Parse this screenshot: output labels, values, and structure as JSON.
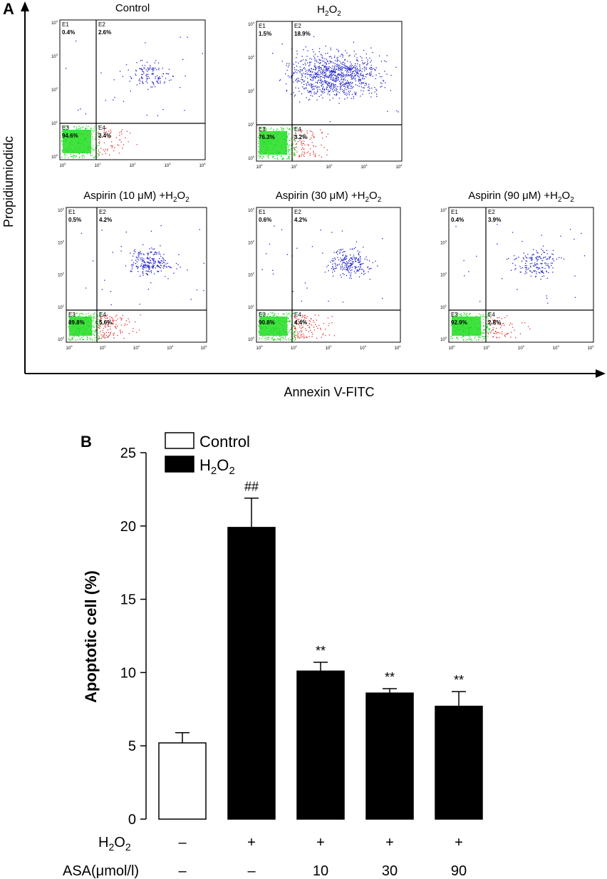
{
  "panel_a": {
    "label": "A",
    "x_axis_label": "Annexin V-FITC",
    "y_axis_label": "Propidiumiodidc",
    "plots": [
      {
        "title": "Control",
        "title_sub": "",
        "q": [
          "E1",
          "E2",
          "E3",
          "E4"
        ],
        "pct": [
          "0.4%",
          "2.6%",
          "94.6%",
          "2.4%"
        ]
      },
      {
        "title": "H",
        "title_sub": "2",
        "title_tail": "O",
        "title_sub2": "2",
        "q": [
          "E1",
          "E2",
          "E3",
          "E4"
        ],
        "pct": [
          "1.5%",
          "18.9%",
          "76.3%",
          "3.2%"
        ]
      },
      {
        "title": "Aspirin (10 μM) +H",
        "title_sub": "2",
        "title_tail": "O",
        "title_sub2": "2",
        "q": [
          "E1",
          "E2",
          "E3",
          "E4"
        ],
        "pct": [
          "0.5%",
          "4.2%",
          "89.8%",
          "5.6%"
        ]
      },
      {
        "title": "Aspirin (30 μM) +H",
        "title_sub": "2",
        "title_tail": "O",
        "title_sub2": "2",
        "q": [
          "E1",
          "E2",
          "E3",
          "E4"
        ],
        "pct": [
          "0.6%",
          "4.2%",
          "90.8%",
          "4.4%"
        ]
      },
      {
        "title": "Aspirin (90 μM) +H",
        "title_sub": "2",
        "title_tail": "O",
        "title_sub2": "2",
        "q": [
          "E1",
          "E2",
          "E3",
          "E4"
        ],
        "pct": [
          "0.4%",
          "3.9%",
          "92.9%",
          "2.8%"
        ]
      }
    ],
    "tick_labels": [
      "10",
      "0",
      "10",
      "1",
      "10",
      "2",
      "10",
      "3",
      "10",
      "4"
    ],
    "colors": {
      "live": "#22dd22",
      "early": "#e03030",
      "late": "#2222cc"
    }
  },
  "panel_b": {
    "label": "B",
    "legend": [
      {
        "name": "Control",
        "fill": "#ffffff"
      },
      {
        "name": "H",
        "sub": "2",
        "tail": "O",
        "sub2": "2",
        "fill": "#000000"
      }
    ],
    "row_labels": {
      "h2o2": {
        "main": "H",
        "sub": "2",
        "tail": "O",
        "sub2": "2"
      },
      "asa": "ASA(μmol/l)"
    },
    "h2o2_row": [
      "–",
      "+",
      "+",
      "+",
      "+"
    ],
    "asa_row": [
      "–",
      "–",
      "10",
      "30",
      "90"
    ]
  },
  "chart_data": {
    "type": "bar",
    "title": "",
    "xlabel": "",
    "ylabel": "Apoptotic cell (%)",
    "ylim": [
      0,
      25
    ],
    "yticks": [
      0,
      5,
      10,
      15,
      20,
      25
    ],
    "categories": [
      "Control",
      "H2O2",
      "ASA 10 + H2O2",
      "ASA 30 + H2O2",
      "ASA 90 + H2O2"
    ],
    "values": [
      5.2,
      19.9,
      10.1,
      8.6,
      7.7
    ],
    "errors": [
      0.7,
      2.0,
      0.6,
      0.3,
      1.0
    ],
    "fills": [
      "#ffffff",
      "#000000",
      "#000000",
      "#000000",
      "#000000"
    ],
    "annotations": [
      "",
      "##",
      "**",
      "**",
      "**"
    ]
  }
}
